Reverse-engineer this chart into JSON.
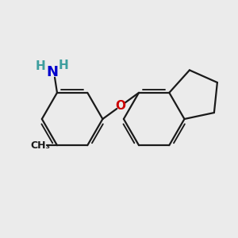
{
  "background_color": "#ebebeb",
  "bond_color": "#1a1a1a",
  "N_color": "#0000cd",
  "O_color": "#cc0000",
  "H_color": "#3d9e9e",
  "figsize": [
    3.0,
    3.0
  ],
  "dpi": 100,
  "xlim": [
    0,
    10
  ],
  "ylim": [
    0,
    10
  ]
}
